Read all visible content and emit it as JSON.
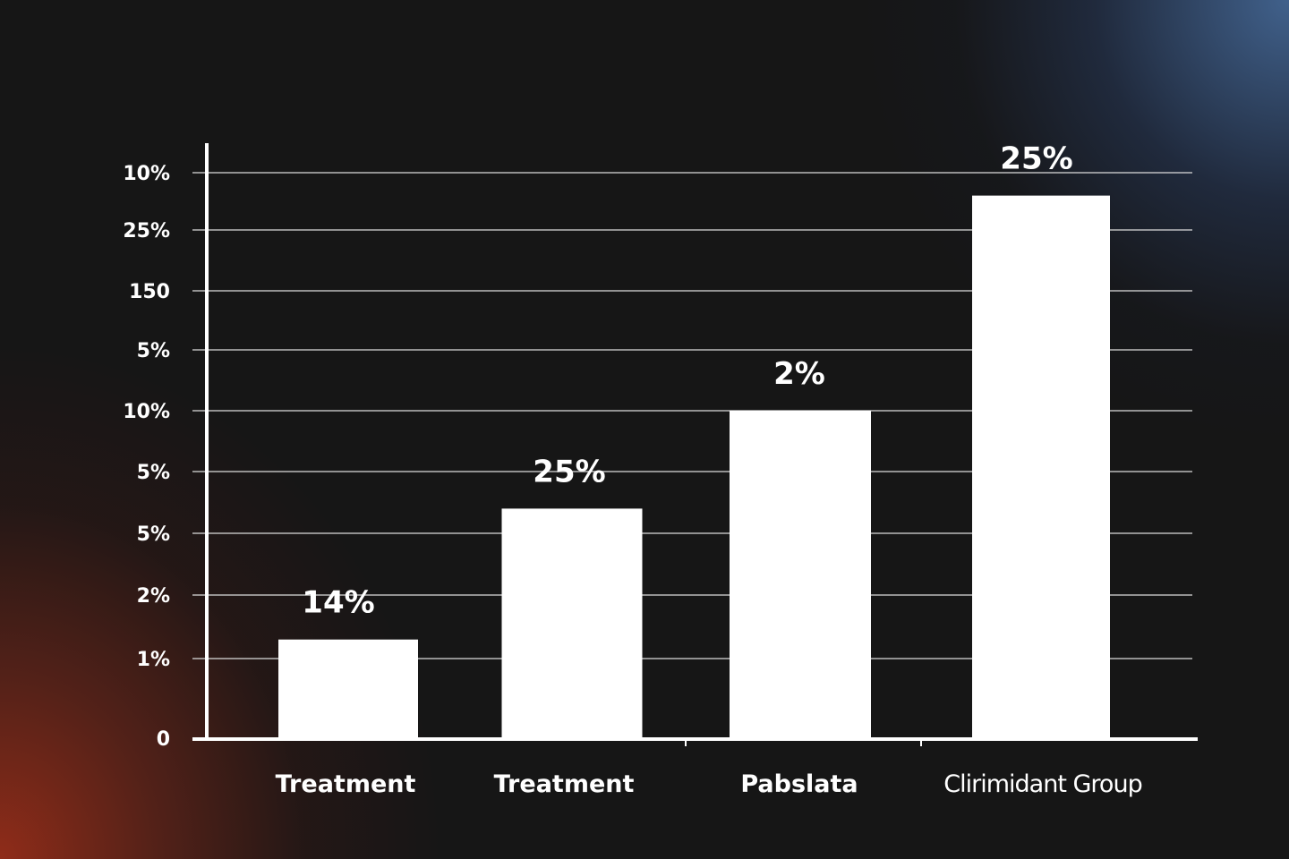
{
  "chart_data": {
    "type": "bar",
    "title": "",
    "xlabel": "",
    "ylabel": "",
    "y_tick_labels": [
      "0",
      "1%",
      "2%",
      "5%",
      "5%",
      "10%",
      "5%",
      "150",
      "25%",
      "10%"
    ],
    "categories": [
      "Treatment",
      "Treatment",
      "Pabslata",
      "Clirimidant Group"
    ],
    "values": [
      1.3,
      3.4,
      5.0,
      8.6
    ],
    "value_units": "gridline index (labels on y-axis are inconsistent)",
    "data_labels": [
      "14%",
      "25%",
      "2%",
      "25%"
    ],
    "ylim": [
      0,
      9.2
    ],
    "grid": true,
    "legend": "none",
    "colors": {
      "bar": "#ffffff",
      "grid": "#d9d9d9",
      "axis": "#ffffff",
      "text": "#ffffff",
      "background": "#161616",
      "glow_top_right": "#486ea0",
      "glow_bottom_left": "#962d19"
    }
  }
}
